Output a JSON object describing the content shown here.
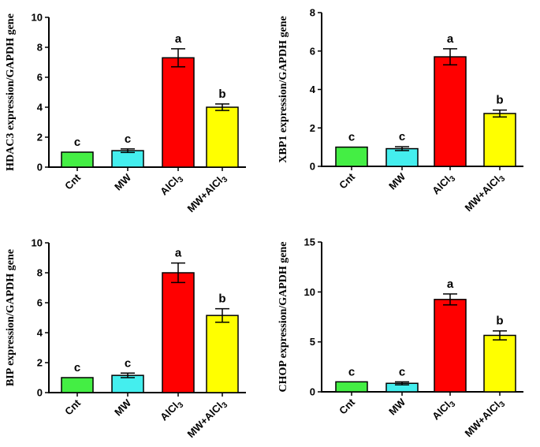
{
  "chart_data": [
    {
      "type": "bar",
      "ylabel": "HDAC3 expression/GAPDH gene",
      "categories": [
        "Cnt",
        "MW",
        "AlCl3",
        "MW+AlCl3"
      ],
      "values": [
        1.0,
        1.1,
        7.3,
        4.0
      ],
      "errors": [
        0.0,
        0.12,
        0.6,
        0.22
      ],
      "letters": [
        "c",
        "c",
        "a",
        "b"
      ],
      "colors": [
        "#44ee44",
        "#44eeee",
        "#ff0000",
        "#ffff00"
      ],
      "ylim": [
        0,
        10
      ],
      "yticks": [
        "0",
        "2",
        "4",
        "6",
        "8",
        "10"
      ]
    },
    {
      "type": "bar",
      "ylabel": "XBP1 expression/GAPDH gene",
      "categories": [
        "Cnt",
        "MW",
        "AlCl3",
        "MW+AlCl3"
      ],
      "values": [
        1.0,
        0.92,
        5.7,
        2.75
      ],
      "errors": [
        0.0,
        0.1,
        0.42,
        0.18
      ],
      "letters": [
        "c",
        "c",
        "a",
        "b"
      ],
      "colors": [
        "#44ee44",
        "#44eeee",
        "#ff0000",
        "#ffff00"
      ],
      "ylim": [
        0,
        8
      ],
      "yticks": [
        "0",
        "2",
        "4",
        "6",
        "8"
      ]
    },
    {
      "type": "bar",
      "ylabel": "BIP expression/GAPDH gene",
      "categories": [
        "Cnt",
        "MW",
        "AlCl3",
        "MW+AlCl3"
      ],
      "values": [
        1.0,
        1.15,
        8.0,
        5.15
      ],
      "errors": [
        0.0,
        0.15,
        0.65,
        0.45
      ],
      "letters": [
        "c",
        "c",
        "a",
        "b"
      ],
      "colors": [
        "#44ee44",
        "#44eeee",
        "#ff0000",
        "#ffff00"
      ],
      "ylim": [
        0,
        10
      ],
      "yticks": [
        "0",
        "2",
        "4",
        "6",
        "8",
        "10"
      ]
    },
    {
      "type": "bar",
      "ylabel": "CHOP expression/GAPDH gene",
      "categories": [
        "Cnt",
        "MW",
        "AlCl3",
        "MW+AlCl3"
      ],
      "values": [
        1.0,
        0.85,
        9.25,
        5.65
      ],
      "errors": [
        0.0,
        0.15,
        0.55,
        0.45
      ],
      "letters": [
        "c",
        "c",
        "a",
        "b"
      ],
      "colors": [
        "#44ee44",
        "#44eeee",
        "#ff0000",
        "#ffff00"
      ],
      "ylim": [
        0,
        15
      ],
      "yticks": [
        "0",
        "5",
        "10",
        "15"
      ]
    }
  ]
}
